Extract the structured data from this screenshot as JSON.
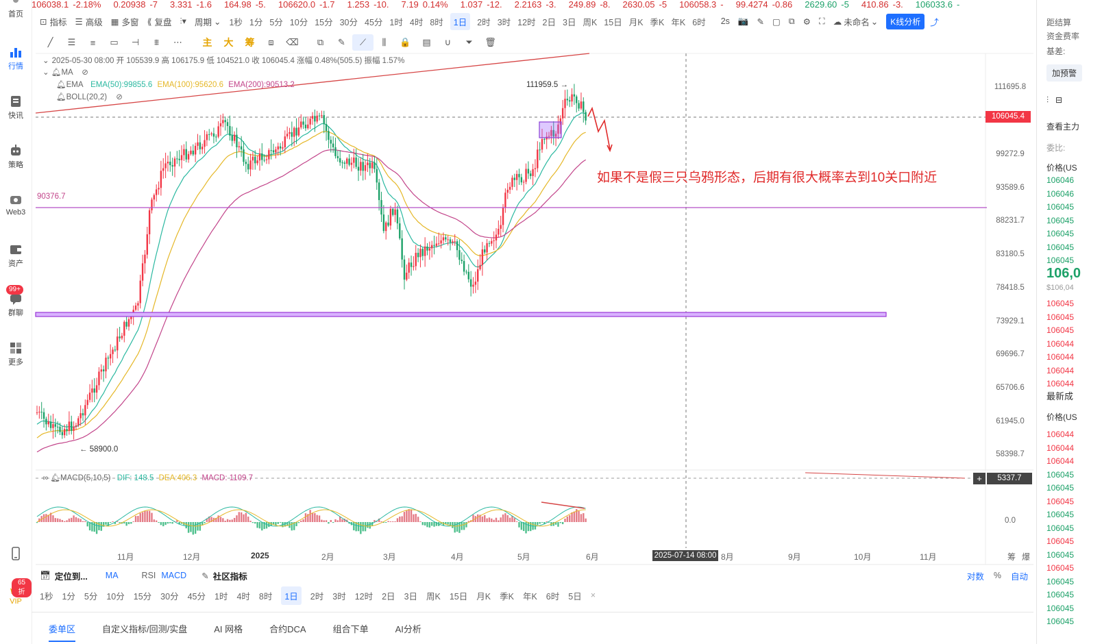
{
  "ticker": [
    {
      "price": "106038.1",
      "change": "-2.18%",
      "dir": "down"
    },
    {
      "price": "0.20938",
      "change": "-7",
      "dir": "down"
    },
    {
      "price": "3.331",
      "change": "-1.6",
      "dir": "down"
    },
    {
      "price": "164.98",
      "change": "-5.",
      "dir": "down"
    },
    {
      "price": "106620.0",
      "change": "-1.7",
      "dir": "down"
    },
    {
      "price": "1.253",
      "change": "-10.",
      "dir": "down"
    },
    {
      "price": "7.19",
      "change": "0.14%",
      "dir": "down"
    },
    {
      "price": "1.037",
      "change": "-12.",
      "dir": "down"
    },
    {
      "price": "2.2163",
      "change": "-3.",
      "dir": "down"
    },
    {
      "price": "249.89",
      "change": "-8.",
      "dir": "down"
    },
    {
      "price": "2630.05",
      "change": "-5",
      "dir": "down"
    },
    {
      "price": "106058.3",
      "change": "-",
      "dir": "down"
    },
    {
      "price": "99.4274",
      "change": "-0.86",
      "dir": "down"
    },
    {
      "price": "2629.60",
      "change": "-5",
      "dir": "up"
    },
    {
      "price": "410.86",
      "change": "-3.",
      "dir": "down"
    },
    {
      "price": "106033.6",
      "change": "-",
      "dir": "up"
    }
  ],
  "leftnav": [
    {
      "label": "首页",
      "icon": "home-icon"
    },
    {
      "label": "行情",
      "icon": "market-chart-icon",
      "active": true
    },
    {
      "label": "快讯",
      "icon": "news-icon"
    },
    {
      "label": "策略",
      "icon": "robot-icon"
    },
    {
      "label": "Web3",
      "icon": "web3-icon"
    },
    {
      "label": "资产",
      "icon": "wallet-icon"
    },
    {
      "label": "群聊",
      "icon": "chat-icon",
      "badge": "99+"
    },
    {
      "label": "更多",
      "icon": "grid-icon"
    }
  ],
  "vip": {
    "label": "VIP",
    "badge": "65折"
  },
  "toolbar": {
    "indicator": "指标",
    "advanced": "高级",
    "multi": "多窗",
    "replay": "复盘",
    "period": "周期",
    "periods": [
      "1秒",
      "1分",
      "5分",
      "10分",
      "15分",
      "30分",
      "45分",
      "1时",
      "4时",
      "8时",
      "1日",
      "2时",
      "3时",
      "12时",
      "2日",
      "3日",
      "周K",
      "15日",
      "月K",
      "季K",
      "年K",
      "6时"
    ],
    "selected_period": "1日",
    "refresh": "2s",
    "layout_name": "未命名",
    "kline_analysis": "K线分析"
  },
  "drawtools": {
    "icons": [
      "trend-line-icon",
      "parallel-channel-icon",
      "horizontal-lines-icon",
      "rectangle-icon",
      "horizontal-ray-icon",
      "pattern-icon",
      "more-icon"
    ],
    "cn_tools": [
      "主",
      "大",
      "筹"
    ],
    "right_icons": [
      "layers-icon",
      "pen-icon",
      "measure-icon",
      "rule-icon",
      "lock-icon",
      "template-icon",
      "magnet-icon",
      "filter-icon",
      "trash-icon"
    ]
  },
  "legend": {
    "ohlc": "2025-05-30 08:00  开 105539.9  高 106175.9  低 104521.0  收 106045.4  涨幅 0.48%(505.5)  振幅 1.57%",
    "ma": "MA",
    "ema_label": "EMA",
    "ema50": "EMA(50):99855.6",
    "ema100": "EMA(100):95620.6",
    "ema200": "EMA(200):90513.2",
    "boll": "BOLL(20,2)",
    "macd_label": "MACD(5,10,5)",
    "dif": "DIF: 148.5",
    "dea": "DEA:406.3",
    "macd": "MACD: 1109.7"
  },
  "chart": {
    "price_labels": [
      "111695.8",
      "99272.9",
      "93589.6",
      "88231.7",
      "83180.5",
      "78418.5",
      "73929.1",
      "69696.7",
      "65706.6",
      "61945.0",
      "58398.7"
    ],
    "current_price": "106045.4",
    "high_marker": "111959.5",
    "low_marker": "58900.0",
    "h_line_label": "90376.7",
    "macd_axis_value": "5337.7",
    "macd_zero": "0.0",
    "x_labels": [
      "11月",
      "12月",
      "2025",
      "2月",
      "3月",
      "4月",
      "5月",
      "6月",
      "8月",
      "9月",
      "10月",
      "11月"
    ],
    "crosshair_date": "2025-07-14 08:00",
    "annotation": "如果不是假三只乌鸦形态，后期有很大概率去到10关口附近",
    "colors": {
      "up": "#f23645",
      "down": "#1ca168",
      "ema50": "#2ab8a0",
      "ema100": "#e5b727",
      "ema200": "#c2448a",
      "annotation": "#e02a2a"
    }
  },
  "indicator_bar": {
    "locate": "定位到...",
    "items": [
      "MA",
      "RSI",
      "MACD"
    ],
    "community": "社区指标",
    "right": [
      "对数",
      "%",
      "自动"
    ]
  },
  "bottom_periods": [
    "1秒",
    "1分",
    "5分",
    "10分",
    "15分",
    "30分",
    "45分",
    "1时",
    "4时",
    "8时",
    "1日",
    "2时",
    "3时",
    "12时",
    "2日",
    "3日",
    "周K",
    "15日",
    "月K",
    "季K",
    "年K",
    "6时",
    "5日"
  ],
  "bottom_selected": "1日",
  "bottom_tabs": [
    "委单区",
    "自定义指标/回测/实盘",
    "AI 网格",
    "合约DCA",
    "组合下单",
    "AI分析"
  ],
  "bottom_axis_right": [
    "筹",
    "爆"
  ],
  "rightpanel": {
    "rows_top": [
      "距结算",
      "资金费率",
      "基差:"
    ],
    "add_btn": "加预警",
    "label_view": "查看主力",
    "depth_label": "委比:",
    "price_header": "价格(US",
    "sell_prices": [
      "106046",
      "106046",
      "106045",
      "106045",
      "106045",
      "106045",
      "106045"
    ],
    "last_price": "106,0",
    "last_usd": "$106,04",
    "buy_prices": [
      "106045",
      "106045",
      "106045",
      "106044",
      "106044",
      "106044",
      "106044"
    ],
    "trades_title": "最新成",
    "trades_header": "价格(US",
    "trades": [
      "106044",
      "106044",
      "106044",
      "106045",
      "106045",
      "106045",
      "106045",
      "106045",
      "106045",
      "106045",
      "106045",
      "106045",
      "106045",
      "106045",
      "106045"
    ]
  }
}
